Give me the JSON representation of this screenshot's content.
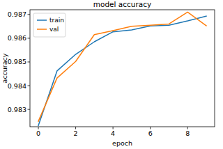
{
  "chart_data": {
    "type": "line",
    "title": "model accuracy",
    "x_label": "epoch",
    "y_label": "accuracy",
    "x": [
      0,
      1,
      2,
      3,
      4,
      5,
      6,
      7,
      8,
      9
    ],
    "series": [
      {
        "name": "train",
        "color": "#1f77b4",
        "values": [
          0.98232,
          0.98462,
          0.98532,
          0.98585,
          0.98627,
          0.98635,
          0.98652,
          0.98655,
          0.98673,
          0.98693
        ]
      },
      {
        "name": "val",
        "color": "#ff7f0e",
        "values": [
          0.9825,
          0.98432,
          0.98502,
          0.98615,
          0.98632,
          0.9865,
          0.98655,
          0.9866,
          0.9871,
          0.98653
        ]
      }
    ],
    "xlim": [
      -0.45,
      9.45
    ],
    "ylim": [
      0.98227,
      0.9872
    ],
    "xticks": [
      0,
      2,
      4,
      6,
      8
    ],
    "yticks": [
      0.983,
      0.984,
      0.985,
      0.986,
      0.987
    ],
    "grid": false,
    "legend": "upper left"
  }
}
